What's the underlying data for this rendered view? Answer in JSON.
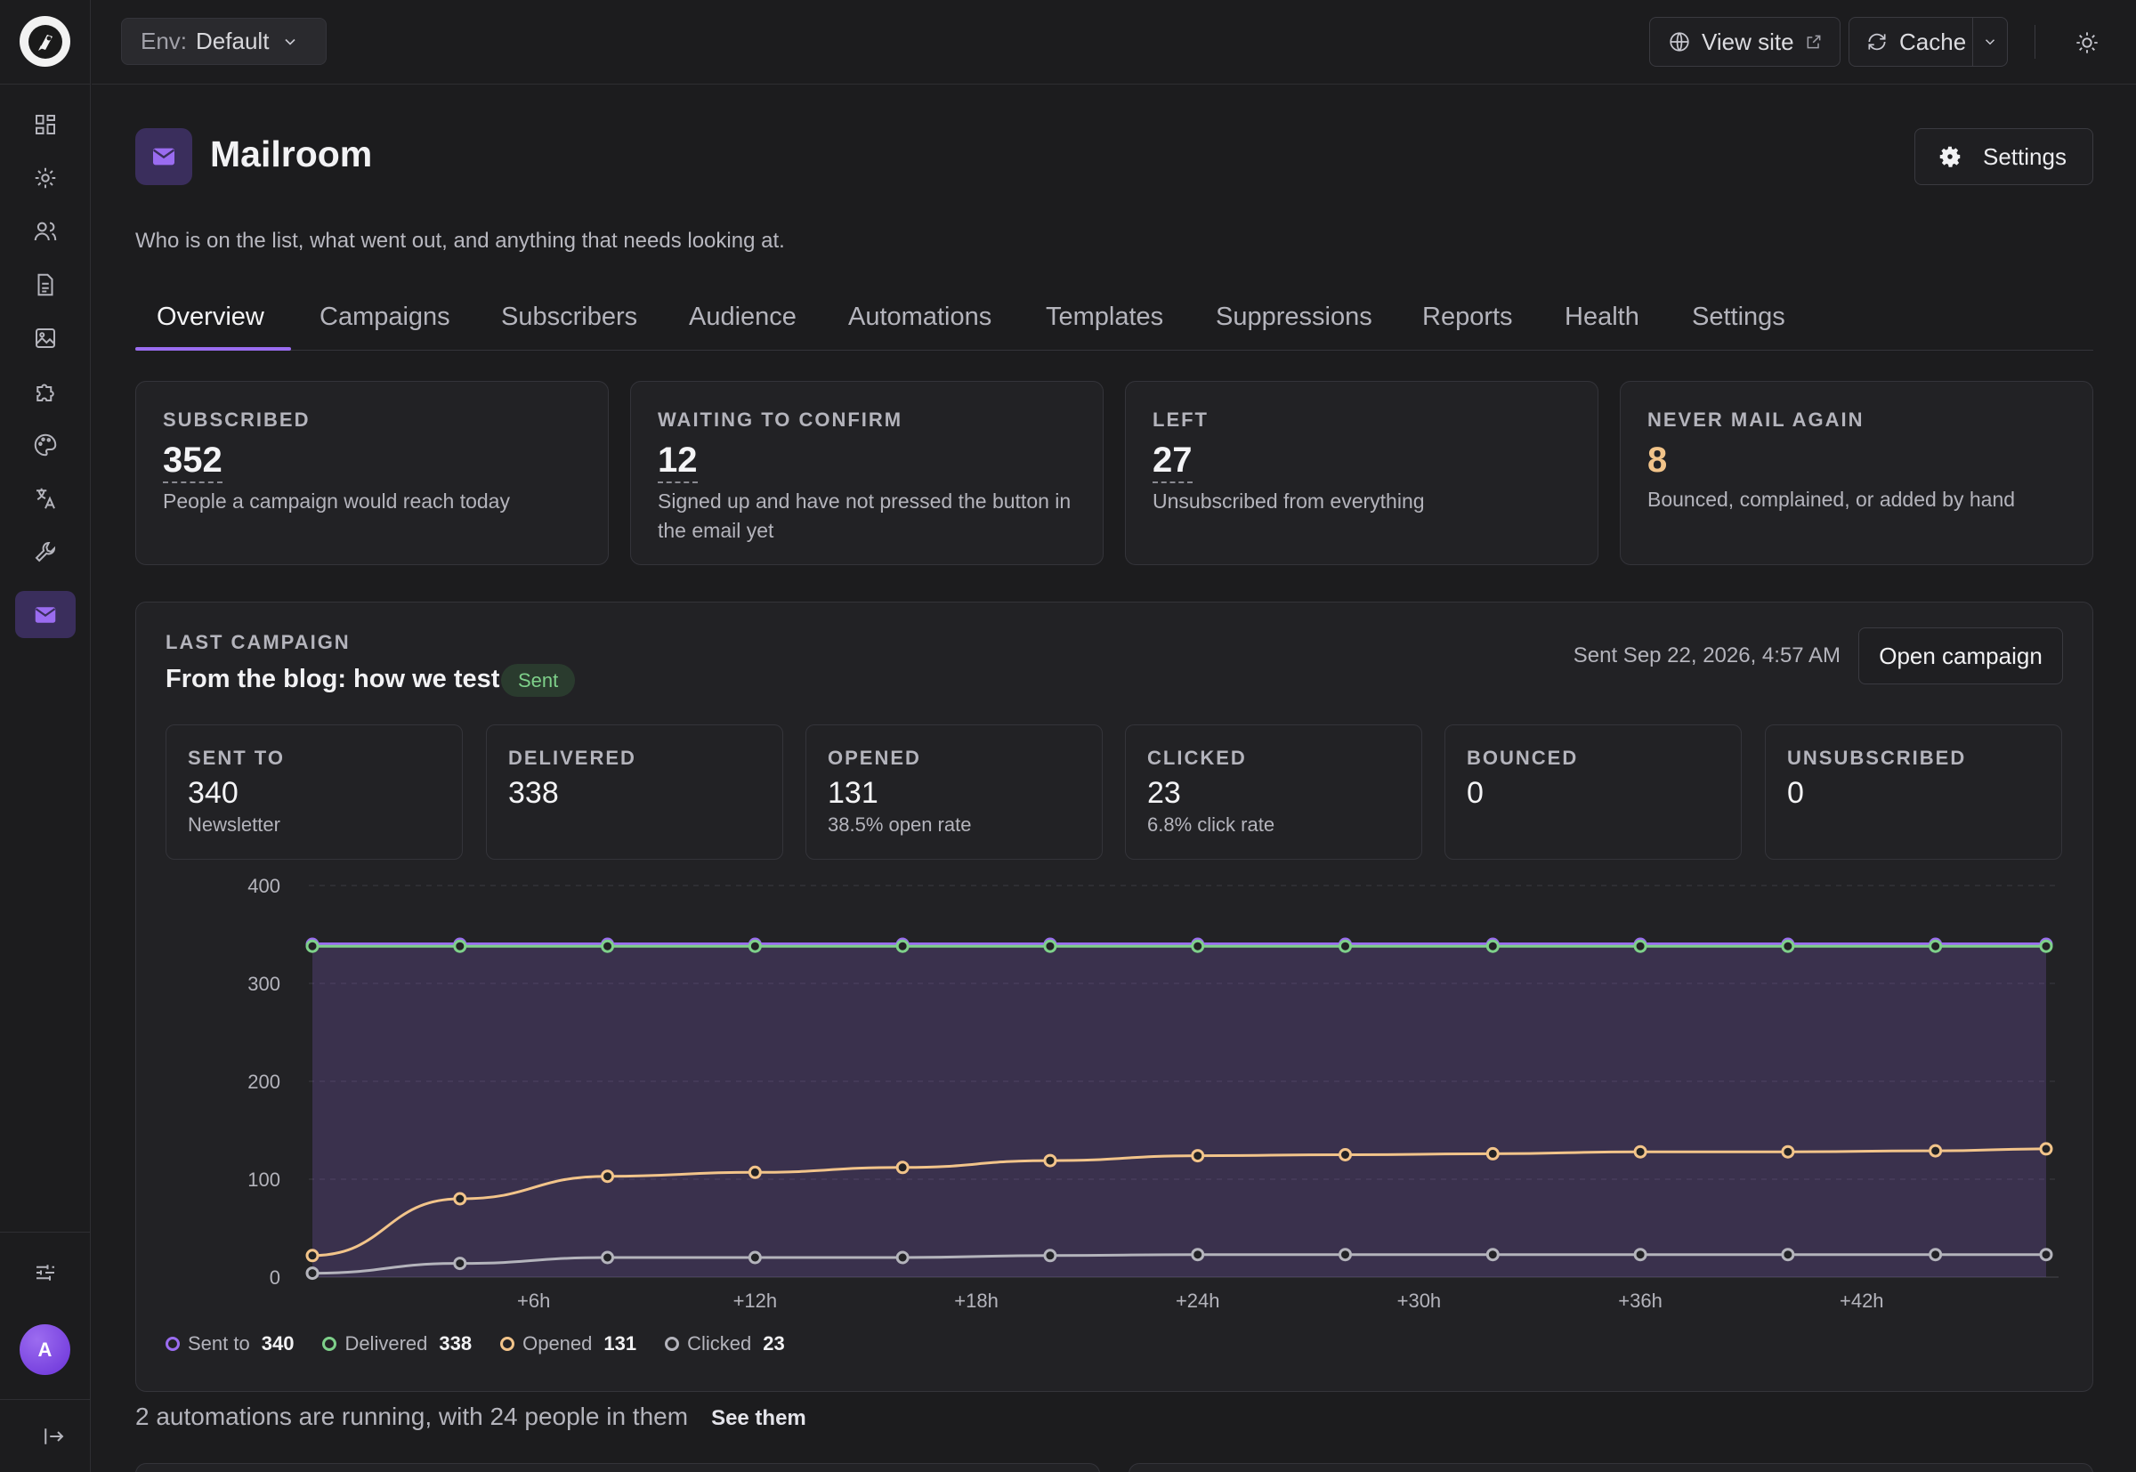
{
  "topbar": {
    "env_label": "Env:",
    "env_value": "Default",
    "view_site": "View site",
    "cache": "Cache"
  },
  "page": {
    "title": "Mailroom",
    "subtitle": "Who is on the list, what went out, and anything that needs looking at.",
    "settings_label": "Settings",
    "icon": "mail-icon"
  },
  "tabs": [
    "Overview",
    "Campaigns",
    "Subscribers",
    "Audience",
    "Automations",
    "Templates",
    "Suppressions",
    "Reports",
    "Health",
    "Settings"
  ],
  "kpis": [
    {
      "label": "SUBSCRIBED",
      "value": "352",
      "desc": "People a campaign would reach today"
    },
    {
      "label": "WAITING TO CONFIRM",
      "value": "12",
      "desc": "Signed up and have not pressed the button in the email yet"
    },
    {
      "label": "LEFT",
      "value": "27",
      "desc": "Unsubscribed from everything"
    },
    {
      "label": "NEVER MAIL AGAIN",
      "value": "8",
      "desc": "Bounced, complained, or added by hand"
    }
  ],
  "campaign": {
    "section_label": "LAST CAMPAIGN",
    "title": "From the blog: how we test",
    "status": "Sent",
    "sent_at": "Sent Sep 22, 2026, 4:57 AM",
    "open_button": "Open campaign",
    "stats": [
      {
        "label": "SENT TO",
        "value": "340",
        "sub": "Newsletter"
      },
      {
        "label": "DELIVERED",
        "value": "338",
        "sub": ""
      },
      {
        "label": "OPENED",
        "value": "131",
        "sub": "38.5% open rate"
      },
      {
        "label": "CLICKED",
        "value": "23",
        "sub": "6.8% click rate"
      },
      {
        "label": "BOUNCED",
        "value": "0",
        "sub": ""
      },
      {
        "label": "UNSUBSCRIBED",
        "value": "0",
        "sub": ""
      }
    ]
  },
  "chart_data": {
    "type": "area",
    "x_hours": [
      0,
      4,
      8,
      12,
      16,
      20,
      24,
      28,
      32,
      36,
      40,
      44,
      47
    ],
    "x_tick_labels": [
      "+6h",
      "+12h",
      "+18h",
      "+24h",
      "+30h",
      "+36h",
      "+42h"
    ],
    "x_tick_hours": [
      6,
      12,
      18,
      24,
      30,
      36,
      42
    ],
    "ylim": [
      0,
      400
    ],
    "y_ticks": [
      0,
      100,
      200,
      300,
      400
    ],
    "grid": true,
    "legend_position": "bottom-left",
    "series": [
      {
        "name": "Sent to",
        "total": "340",
        "color": "#9a6cf0",
        "values": [
          340,
          340,
          340,
          340,
          340,
          340,
          340,
          340,
          340,
          340,
          340,
          340,
          340
        ]
      },
      {
        "name": "Delivered",
        "total": "338",
        "color": "#7ed08a",
        "values": [
          338,
          338,
          338,
          338,
          338,
          338,
          338,
          338,
          338,
          338,
          338,
          338,
          338
        ]
      },
      {
        "name": "Opened",
        "total": "131",
        "color": "#f2c48a",
        "values": [
          22,
          80,
          103,
          107,
          112,
          119,
          124,
          125,
          126,
          128,
          128,
          129,
          131
        ]
      },
      {
        "name": "Clicked",
        "total": "23",
        "color": "#b4b4bc",
        "values": [
          4,
          14,
          20,
          20,
          20,
          22,
          23,
          23,
          23,
          23,
          23,
          23,
          23
        ]
      }
    ]
  },
  "automations": {
    "text": "2 automations are running, with 24 people in them",
    "link": "See them"
  },
  "sidebar": {
    "items": [
      "dashboard-icon",
      "gear-icon",
      "users-icon",
      "document-icon",
      "image-icon",
      "puzzle-icon",
      "palette-icon",
      "translate-icon",
      "wrench-icon",
      "mail-icon"
    ],
    "avatar_initial": "A"
  },
  "colors": {
    "accent": "#9a6cf0",
    "success": "#7ed08a",
    "warn": "#f2c48a"
  }
}
